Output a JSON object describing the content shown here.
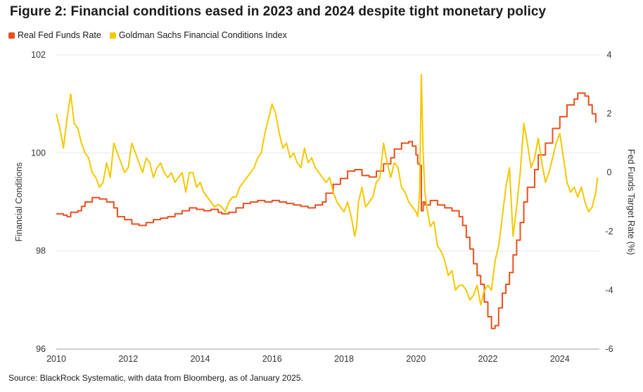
{
  "title": "Figure 2: Financial conditions eased in 2023 and 2024 despite tight monetary policy",
  "source": "Source: BlackRock Systematic, with data from Bloomberg, as of January 2025.",
  "colors": {
    "real_fed_funds": "#e8501e",
    "gsfci": "#f5c800",
    "grid": "#e6e6e6",
    "axis": "#999999"
  },
  "chart_data": {
    "type": "line",
    "grid": "horizontal",
    "legend_position": "top-left",
    "xlim": [
      2010,
      2025.1
    ],
    "x_ticks": [
      2010,
      2012,
      2014,
      2016,
      2018,
      2020,
      2022,
      2024
    ],
    "x_tick_labels": [
      "2010",
      "2012",
      "2014",
      "2016",
      "2018",
      "2020",
      "2022",
      "2024"
    ],
    "y_left": {
      "label": "Financial Conditions",
      "ylim": [
        96,
        102
      ],
      "ticks": [
        96,
        98,
        100,
        102
      ],
      "tick_labels": [
        "96",
        "98",
        "100",
        "102"
      ]
    },
    "y_right": {
      "label": "Fed Funds Target Rate (%)",
      "ylim": [
        -6,
        4
      ],
      "ticks": [
        -6,
        -4,
        -2,
        0,
        2,
        4
      ],
      "tick_labels": [
        "-6",
        "-4",
        "-2",
        "0",
        "2",
        "4"
      ]
    },
    "series": [
      {
        "name": "Real Fed Funds Rate",
        "axis": "right",
        "points": [
          [
            2010.0,
            -1.4
          ],
          [
            2010.2,
            -1.45
          ],
          [
            2010.3,
            -1.5
          ],
          [
            2010.4,
            -1.35
          ],
          [
            2010.6,
            -1.3
          ],
          [
            2010.7,
            -1.15
          ],
          [
            2010.8,
            -1.0
          ],
          [
            2011.0,
            -0.85
          ],
          [
            2011.2,
            -0.9
          ],
          [
            2011.4,
            -1.0
          ],
          [
            2011.6,
            -1.2
          ],
          [
            2011.7,
            -1.5
          ],
          [
            2011.9,
            -1.6
          ],
          [
            2012.1,
            -1.75
          ],
          [
            2012.3,
            -1.8
          ],
          [
            2012.5,
            -1.7
          ],
          [
            2012.7,
            -1.6
          ],
          [
            2012.9,
            -1.55
          ],
          [
            2013.1,
            -1.5
          ],
          [
            2013.3,
            -1.4
          ],
          [
            2013.5,
            -1.3
          ],
          [
            2013.7,
            -1.2
          ],
          [
            2013.9,
            -1.25
          ],
          [
            2014.1,
            -1.3
          ],
          [
            2014.3,
            -1.25
          ],
          [
            2014.5,
            -1.35
          ],
          [
            2014.6,
            -1.4
          ],
          [
            2014.8,
            -1.35
          ],
          [
            2015.0,
            -1.2
          ],
          [
            2015.2,
            -1.05
          ],
          [
            2015.4,
            -1.0
          ],
          [
            2015.6,
            -0.95
          ],
          [
            2015.8,
            -1.0
          ],
          [
            2016.0,
            -0.95
          ],
          [
            2016.2,
            -1.0
          ],
          [
            2016.4,
            -1.05
          ],
          [
            2016.6,
            -1.1
          ],
          [
            2016.8,
            -1.15
          ],
          [
            2017.0,
            -1.2
          ],
          [
            2017.2,
            -1.1
          ],
          [
            2017.4,
            -1.0
          ],
          [
            2017.5,
            -0.7
          ],
          [
            2017.7,
            -0.4
          ],
          [
            2017.9,
            -0.2
          ],
          [
            2018.1,
            0.05
          ],
          [
            2018.3,
            0.1
          ],
          [
            2018.5,
            -0.1
          ],
          [
            2018.7,
            -0.15
          ],
          [
            2018.9,
            0.05
          ],
          [
            2019.1,
            0.3
          ],
          [
            2019.3,
            0.5
          ],
          [
            2019.4,
            0.8
          ],
          [
            2019.6,
            1.0
          ],
          [
            2019.8,
            1.05
          ],
          [
            2019.9,
            0.9
          ],
          [
            2020.0,
            0.6
          ],
          [
            2020.05,
            0.3
          ],
          [
            2020.1,
            0.25
          ],
          [
            2020.15,
            -1.3
          ],
          [
            2020.2,
            -1.0
          ],
          [
            2020.25,
            -1.1
          ],
          [
            2020.4,
            -0.95
          ],
          [
            2020.6,
            -1.1
          ],
          [
            2020.8,
            -1.2
          ],
          [
            2021.0,
            -1.3
          ],
          [
            2021.2,
            -1.5
          ],
          [
            2021.3,
            -1.8
          ],
          [
            2021.4,
            -2.2
          ],
          [
            2021.5,
            -2.6
          ],
          [
            2021.6,
            -3.1
          ],
          [
            2021.7,
            -3.5
          ],
          [
            2021.8,
            -3.8
          ],
          [
            2021.9,
            -4.4
          ],
          [
            2022.0,
            -4.9
          ],
          [
            2022.1,
            -5.3
          ],
          [
            2022.2,
            -5.2
          ],
          [
            2022.3,
            -4.6
          ],
          [
            2022.4,
            -4.1
          ],
          [
            2022.5,
            -3.8
          ],
          [
            2022.6,
            -3.4
          ],
          [
            2022.7,
            -2.8
          ],
          [
            2022.8,
            -2.3
          ],
          [
            2022.9,
            -1.7
          ],
          [
            2023.0,
            -1.0
          ],
          [
            2023.1,
            -0.5
          ],
          [
            2023.3,
            0.1
          ],
          [
            2023.4,
            0.6
          ],
          [
            2023.6,
            1.0
          ],
          [
            2023.8,
            1.5
          ],
          [
            2024.0,
            1.9
          ],
          [
            2024.2,
            2.3
          ],
          [
            2024.4,
            2.5
          ],
          [
            2024.5,
            2.7
          ],
          [
            2024.7,
            2.6
          ],
          [
            2024.8,
            2.3
          ],
          [
            2024.9,
            2.0
          ],
          [
            2025.0,
            1.7
          ]
        ]
      },
      {
        "name": "Goldman Sachs Financial Conditions Index",
        "axis": "left",
        "points": [
          [
            2010.0,
            100.8
          ],
          [
            2010.1,
            100.5
          ],
          [
            2010.2,
            100.1
          ],
          [
            2010.3,
            100.7
          ],
          [
            2010.4,
            101.2
          ],
          [
            2010.5,
            100.6
          ],
          [
            2010.6,
            100.5
          ],
          [
            2010.7,
            100.2
          ],
          [
            2010.8,
            100.0
          ],
          [
            2010.9,
            99.9
          ],
          [
            2011.0,
            99.6
          ],
          [
            2011.1,
            99.5
          ],
          [
            2011.2,
            99.3
          ],
          [
            2011.3,
            99.4
          ],
          [
            2011.4,
            99.8
          ],
          [
            2011.5,
            99.5
          ],
          [
            2011.6,
            100.2
          ],
          [
            2011.7,
            100.0
          ],
          [
            2011.8,
            99.8
          ],
          [
            2011.9,
            99.6
          ],
          [
            2012.0,
            99.7
          ],
          [
            2012.1,
            100.2
          ],
          [
            2012.2,
            100.0
          ],
          [
            2012.3,
            99.8
          ],
          [
            2012.4,
            99.6
          ],
          [
            2012.5,
            99.9
          ],
          [
            2012.6,
            99.8
          ],
          [
            2012.7,
            99.5
          ],
          [
            2012.8,
            99.7
          ],
          [
            2012.9,
            99.8
          ],
          [
            2013.0,
            99.6
          ],
          [
            2013.1,
            99.5
          ],
          [
            2013.2,
            99.6
          ],
          [
            2013.3,
            99.4
          ],
          [
            2013.4,
            99.5
          ],
          [
            2013.5,
            99.6
          ],
          [
            2013.6,
            99.2
          ],
          [
            2013.7,
            99.6
          ],
          [
            2013.8,
            99.6
          ],
          [
            2013.9,
            99.3
          ],
          [
            2014.0,
            99.4
          ],
          [
            2014.1,
            99.2
          ],
          [
            2014.2,
            99.1
          ],
          [
            2014.3,
            99.0
          ],
          [
            2014.4,
            98.9
          ],
          [
            2014.5,
            98.95
          ],
          [
            2014.6,
            98.9
          ],
          [
            2014.7,
            98.8
          ],
          [
            2014.8,
            99.0
          ],
          [
            2014.9,
            99.1
          ],
          [
            2015.0,
            99.1
          ],
          [
            2015.1,
            99.3
          ],
          [
            2015.2,
            99.4
          ],
          [
            2015.3,
            99.5
          ],
          [
            2015.4,
            99.6
          ],
          [
            2015.5,
            99.7
          ],
          [
            2015.6,
            99.9
          ],
          [
            2015.7,
            100.0
          ],
          [
            2015.8,
            100.4
          ],
          [
            2015.9,
            100.7
          ],
          [
            2016.0,
            101.0
          ],
          [
            2016.1,
            100.8
          ],
          [
            2016.2,
            100.4
          ],
          [
            2016.3,
            100.1
          ],
          [
            2016.4,
            100.2
          ],
          [
            2016.5,
            99.9
          ],
          [
            2016.6,
            100.0
          ],
          [
            2016.7,
            99.8
          ],
          [
            2016.8,
            99.7
          ],
          [
            2016.9,
            100.1
          ],
          [
            2017.0,
            99.8
          ],
          [
            2017.1,
            99.9
          ],
          [
            2017.2,
            99.7
          ],
          [
            2017.3,
            99.6
          ],
          [
            2017.4,
            99.5
          ],
          [
            2017.5,
            99.4
          ],
          [
            2017.6,
            99.5
          ],
          [
            2017.7,
            99.2
          ],
          [
            2017.8,
            99.0
          ],
          [
            2017.9,
            98.9
          ],
          [
            2018.0,
            98.8
          ],
          [
            2018.1,
            99.0
          ],
          [
            2018.2,
            98.7
          ],
          [
            2018.3,
            98.3
          ],
          [
            2018.35,
            98.5
          ],
          [
            2018.4,
            99.0
          ],
          [
            2018.5,
            99.3
          ],
          [
            2018.6,
            98.9
          ],
          [
            2018.7,
            99.0
          ],
          [
            2018.8,
            99.1
          ],
          [
            2018.9,
            99.4
          ],
          [
            2019.0,
            99.5
          ],
          [
            2019.1,
            100.2
          ],
          [
            2019.2,
            99.8
          ],
          [
            2019.3,
            99.5
          ],
          [
            2019.4,
            99.8
          ],
          [
            2019.5,
            99.7
          ],
          [
            2019.6,
            99.3
          ],
          [
            2019.7,
            99.2
          ],
          [
            2019.8,
            99.0
          ],
          [
            2019.9,
            98.9
          ],
          [
            2020.0,
            98.8
          ],
          [
            2020.05,
            98.7
          ],
          [
            2020.1,
            99.2
          ],
          [
            2020.15,
            101.6
          ],
          [
            2020.2,
            100.0
          ],
          [
            2020.25,
            99.2
          ],
          [
            2020.3,
            98.9
          ],
          [
            2020.4,
            98.5
          ],
          [
            2020.5,
            98.6
          ],
          [
            2020.6,
            98.1
          ],
          [
            2020.7,
            98.0
          ],
          [
            2020.8,
            97.8
          ],
          [
            2020.9,
            97.5
          ],
          [
            2021.0,
            97.6
          ],
          [
            2021.1,
            97.2
          ],
          [
            2021.2,
            97.3
          ],
          [
            2021.3,
            97.3
          ],
          [
            2021.4,
            97.2
          ],
          [
            2021.5,
            97.0
          ],
          [
            2021.6,
            97.1
          ],
          [
            2021.7,
            97.3
          ],
          [
            2021.8,
            96.9
          ],
          [
            2021.9,
            97.2
          ],
          [
            2022.0,
            97.3
          ],
          [
            2022.1,
            97.2
          ],
          [
            2022.2,
            97.8
          ],
          [
            2022.3,
            98.1
          ],
          [
            2022.4,
            98.7
          ],
          [
            2022.5,
            99.3
          ],
          [
            2022.6,
            99.7
          ],
          [
            2022.7,
            98.3
          ],
          [
            2022.8,
            98.9
          ],
          [
            2022.9,
            99.6
          ],
          [
            2023.0,
            100.6
          ],
          [
            2023.1,
            100.2
          ],
          [
            2023.2,
            99.7
          ],
          [
            2023.3,
            99.9
          ],
          [
            2023.4,
            100.3
          ],
          [
            2023.5,
            99.8
          ],
          [
            2023.6,
            99.4
          ],
          [
            2023.7,
            99.6
          ],
          [
            2023.8,
            99.9
          ],
          [
            2023.9,
            100.2
          ],
          [
            2024.0,
            100.4
          ],
          [
            2024.1,
            99.9
          ],
          [
            2024.2,
            99.4
          ],
          [
            2024.3,
            99.2
          ],
          [
            2024.4,
            99.3
          ],
          [
            2024.5,
            99.1
          ],
          [
            2024.6,
            99.3
          ],
          [
            2024.7,
            99.0
          ],
          [
            2024.8,
            98.8
          ],
          [
            2024.9,
            98.9
          ],
          [
            2025.0,
            99.2
          ],
          [
            2025.05,
            99.5
          ]
        ]
      }
    ]
  }
}
